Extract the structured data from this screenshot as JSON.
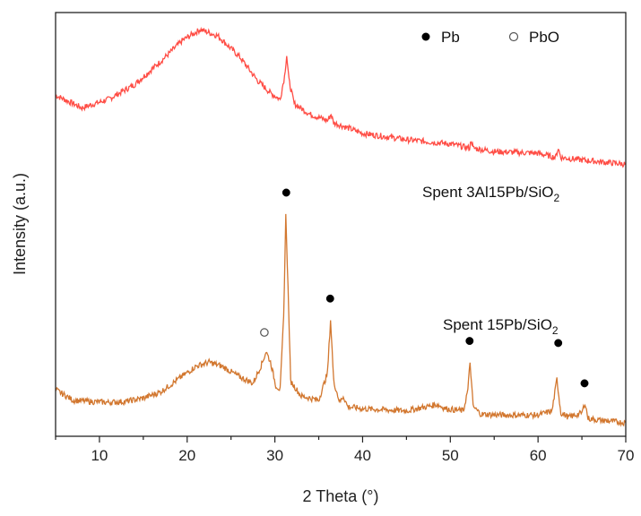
{
  "chart_data": {
    "type": "line",
    "xlabel": "2 Theta (°)",
    "ylabel": "Intensity (a.u.)",
    "xlim": [
      5,
      70
    ],
    "xticks": [
      10,
      20,
      30,
      40,
      50,
      60,
      70
    ],
    "xtick_labels": [
      "10",
      "20",
      "30",
      "40",
      "50",
      "60",
      "70"
    ],
    "yticks_shown": false,
    "colors": {
      "upper": "#ff4d45",
      "lower": "#d2772f",
      "axis": "#222222"
    },
    "legend": {
      "position": "top-right",
      "entries": [
        {
          "label": "Pb",
          "marker": "filled-circle"
        },
        {
          "label": "PbO",
          "marker": "open-circle"
        }
      ]
    },
    "series": [
      {
        "label": "Spent 3Al15Pb/SiO",
        "label_subscript": "2",
        "color": "#ff4d45",
        "offset": 57,
        "points": [
          [
            5,
            23.5
          ],
          [
            8,
            20.5
          ],
          [
            11,
            22.5
          ],
          [
            14,
            26
          ],
          [
            17,
            31.5
          ],
          [
            19.5,
            36.5
          ],
          [
            21.5,
            39
          ],
          [
            23.5,
            37.5
          ],
          [
            26,
            32.5
          ],
          [
            28,
            27
          ],
          [
            29.5,
            24
          ],
          [
            30.6,
            22.5
          ],
          [
            31.1,
            28
          ],
          [
            31.35,
            33
          ],
          [
            31.6,
            27
          ],
          [
            32.2,
            21.5
          ],
          [
            34,
            19
          ],
          [
            36,
            17.5
          ],
          [
            36.4,
            19
          ],
          [
            36.7,
            17
          ],
          [
            40,
            14.5
          ],
          [
            45,
            13
          ],
          [
            50,
            12
          ],
          [
            52.2,
            11
          ],
          [
            52.4,
            13
          ],
          [
            52.6,
            11
          ],
          [
            55,
            10.2
          ],
          [
            60,
            9.8
          ],
          [
            62,
            8.8
          ],
          [
            62.3,
            11
          ],
          [
            62.6,
            8.8
          ],
          [
            65,
            8.2
          ],
          [
            70,
            7.2
          ]
        ]
      },
      {
        "label": "Spent 15Pb/SiO",
        "label_subscript": "2",
        "color": "#d2772f",
        "offset": 0,
        "points": [
          [
            5,
            11
          ],
          [
            7,
            8.5
          ],
          [
            9,
            8.2
          ],
          [
            11,
            8
          ],
          [
            13,
            8.2
          ],
          [
            15,
            9
          ],
          [
            17,
            10.5
          ],
          [
            19,
            13.5
          ],
          [
            21,
            16.5
          ],
          [
            22.5,
            17.5
          ],
          [
            24,
            16.5
          ],
          [
            26,
            14
          ],
          [
            27.5,
            12.5
          ],
          [
            28.5,
            17
          ],
          [
            29,
            20
          ],
          [
            29.5,
            17.5
          ],
          [
            30.1,
            12
          ],
          [
            30.6,
            11
          ],
          [
            31.0,
            28
          ],
          [
            31.25,
            52
          ],
          [
            31.5,
            35
          ],
          [
            31.8,
            13
          ],
          [
            33,
            9.5
          ],
          [
            35,
            8.5
          ],
          [
            36.0,
            15
          ],
          [
            36.35,
            27.5
          ],
          [
            36.7,
            13
          ],
          [
            37.4,
            8
          ],
          [
            37.8,
            9.5
          ],
          [
            38.3,
            7
          ],
          [
            40,
            6.5
          ],
          [
            45,
            6
          ],
          [
            48.5,
            7.5
          ],
          [
            49.5,
            6.5
          ],
          [
            51.5,
            6
          ],
          [
            52.0,
            11
          ],
          [
            52.25,
            17.5
          ],
          [
            52.6,
            7
          ],
          [
            53.5,
            5.2
          ],
          [
            56,
            5
          ],
          [
            60,
            5
          ],
          [
            61.6,
            6
          ],
          [
            62.15,
            13.5
          ],
          [
            62.6,
            5.5
          ],
          [
            63.5,
            4.5
          ],
          [
            65.0,
            5.5
          ],
          [
            65.35,
            8
          ],
          [
            65.7,
            4.2
          ],
          [
            67,
            3.8
          ],
          [
            70,
            3.2
          ]
        ]
      }
    ],
    "peak_markers": [
      {
        "x": 28.8,
        "y": 24.5,
        "phase": "PbO"
      },
      {
        "x": 31.3,
        "y": 57.5,
        "phase": "Pb"
      },
      {
        "x": 36.3,
        "y": 32.5,
        "phase": "Pb"
      },
      {
        "x": 52.2,
        "y": 22.5,
        "phase": "Pb"
      },
      {
        "x": 62.3,
        "y": 22,
        "phase": "Pb"
      },
      {
        "x": 65.3,
        "y": 12.5,
        "phase": "Pb"
      }
    ]
  }
}
